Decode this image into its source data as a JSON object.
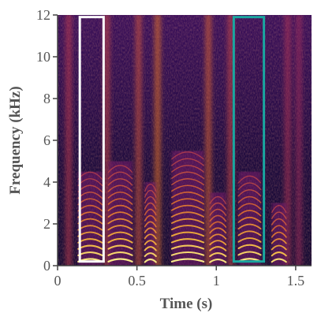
{
  "chart_data": {
    "type": "heatmap",
    "subtype": "spectrogram",
    "title": "",
    "xlabel": "Time (s)",
    "ylabel": "Frequency (kHz)",
    "xlim": [
      0,
      1.6
    ],
    "ylim": [
      0,
      12
    ],
    "x_ticks": [
      0,
      0.5,
      1,
      1.5
    ],
    "x_tick_labels": [
      "0",
      "0.5",
      "1",
      "1.5"
    ],
    "y_ticks": [
      0,
      2,
      4,
      6,
      8,
      10,
      12
    ],
    "y_tick_labels": [
      "0",
      "2",
      "4",
      "6",
      "8",
      "10",
      "12"
    ],
    "grid": false,
    "colormap": "inferno",
    "colors": {
      "background": "#140a30",
      "axis_text": "#555555",
      "box_1": "#ffffff",
      "box_2": "#1aa6a0"
    },
    "highlight_boxes": [
      {
        "name": "white-box",
        "x_range": [
          0.14,
          0.29
        ],
        "y_range": [
          0.2,
          11.9
        ],
        "color": "#ffffff"
      },
      {
        "name": "teal-box",
        "x_range": [
          1.11,
          1.3
        ],
        "y_range": [
          0.2,
          11.9
        ],
        "color": "#1aa6a0"
      }
    ],
    "voiced_segments": [
      {
        "x_range": [
          0.13,
          0.28
        ],
        "f0_khz": 0.32,
        "harmonics_top_khz": 4.5
      },
      {
        "x_range": [
          0.32,
          0.47
        ],
        "f0_khz": 0.32,
        "harmonics_top_khz": 5.0
      },
      {
        "x_range": [
          0.55,
          0.62
        ],
        "f0_khz": 0.3,
        "harmonics_top_khz": 4.0
      },
      {
        "x_range": [
          0.72,
          0.92
        ],
        "f0_khz": 0.32,
        "harmonics_top_khz": 5.5
      },
      {
        "x_range": [
          0.96,
          1.06
        ],
        "f0_khz": 0.3,
        "harmonics_top_khz": 3.5
      },
      {
        "x_range": [
          1.14,
          1.28
        ],
        "f0_khz": 0.33,
        "harmonics_top_khz": 4.5
      },
      {
        "x_range": [
          1.35,
          1.44
        ],
        "f0_khz": 0.32,
        "harmonics_top_khz": 3.0
      }
    ],
    "bursts": [
      {
        "x": 0.07,
        "intensity": 0.55
      },
      {
        "x": 0.31,
        "intensity": 0.6
      },
      {
        "x": 0.51,
        "intensity": 0.65
      },
      {
        "x": 0.63,
        "intensity": 0.75
      },
      {
        "x": 0.95,
        "intensity": 0.7
      },
      {
        "x": 1.09,
        "intensity": 0.6
      },
      {
        "x": 1.45,
        "intensity": 0.5
      },
      {
        "x": 1.52,
        "intensity": 0.45
      }
    ]
  }
}
